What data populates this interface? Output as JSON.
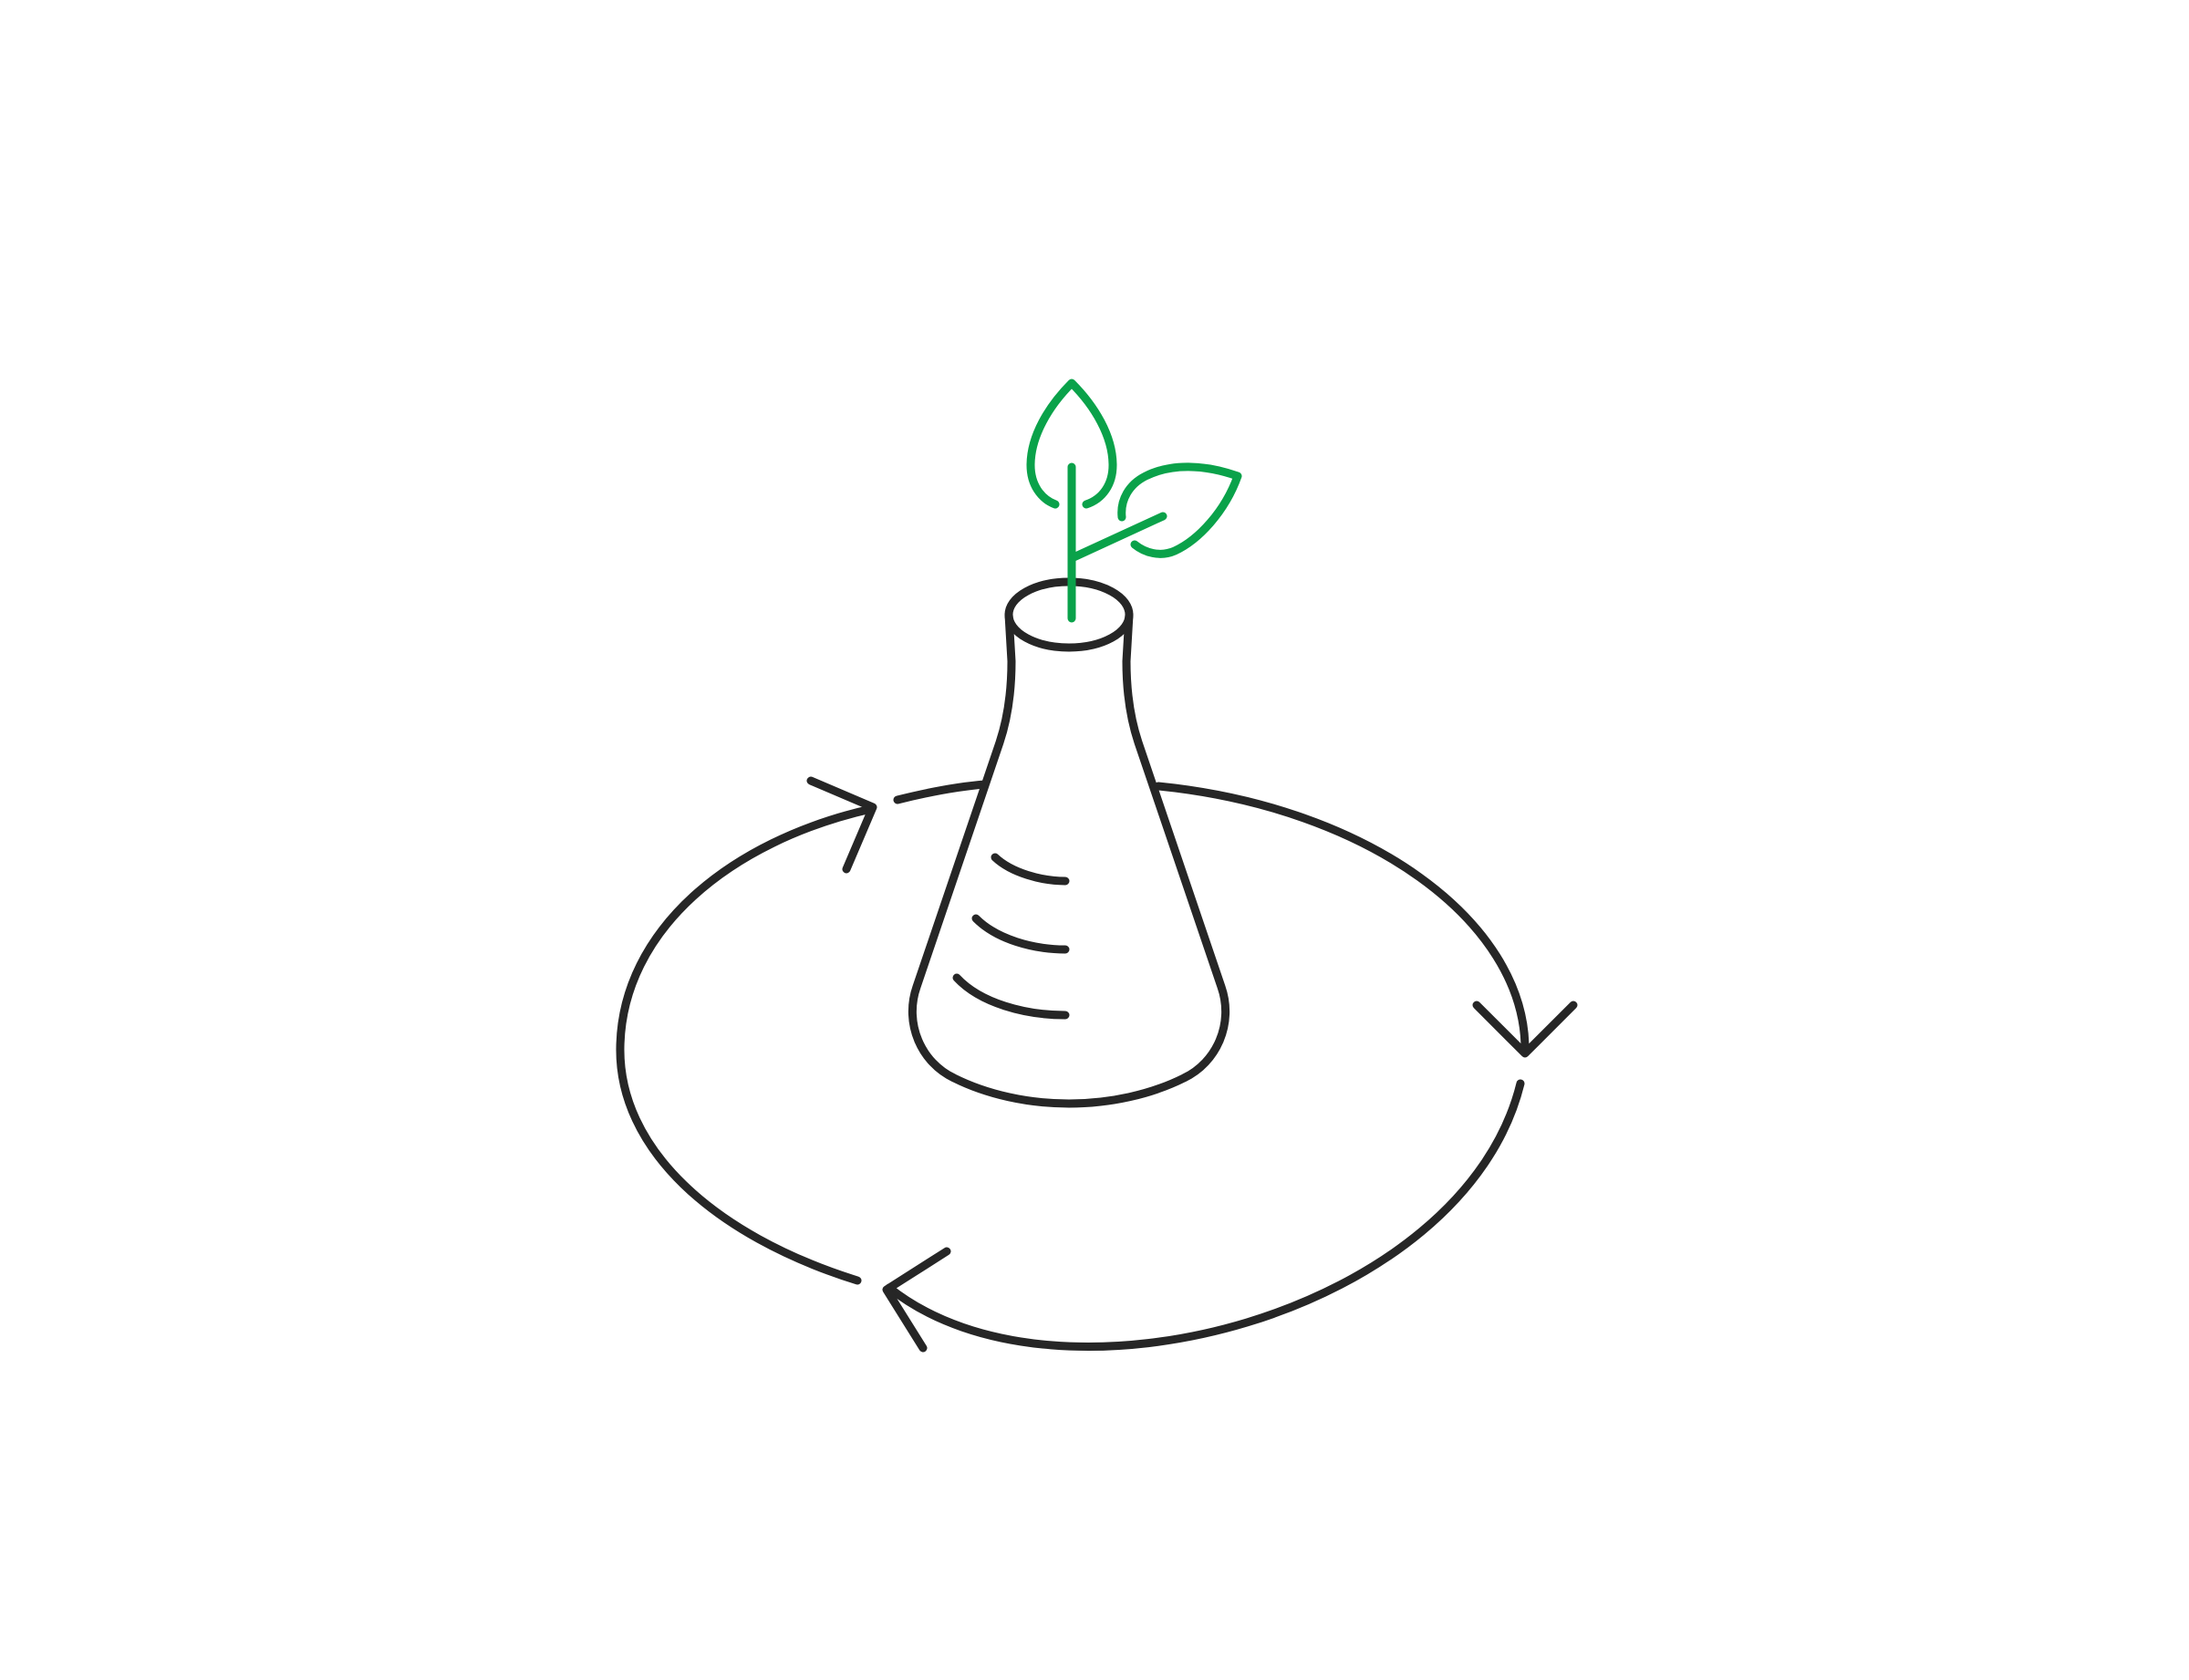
{
  "illustration": {
    "subject": "flask-with-sprout-in-cycle",
    "icons": [
      "cycle-arrows-icon",
      "flask-icon",
      "sprout-icon"
    ],
    "colors": {
      "outline": "#262626",
      "sprout": "#0aa24a",
      "background": "#ffffff"
    }
  }
}
